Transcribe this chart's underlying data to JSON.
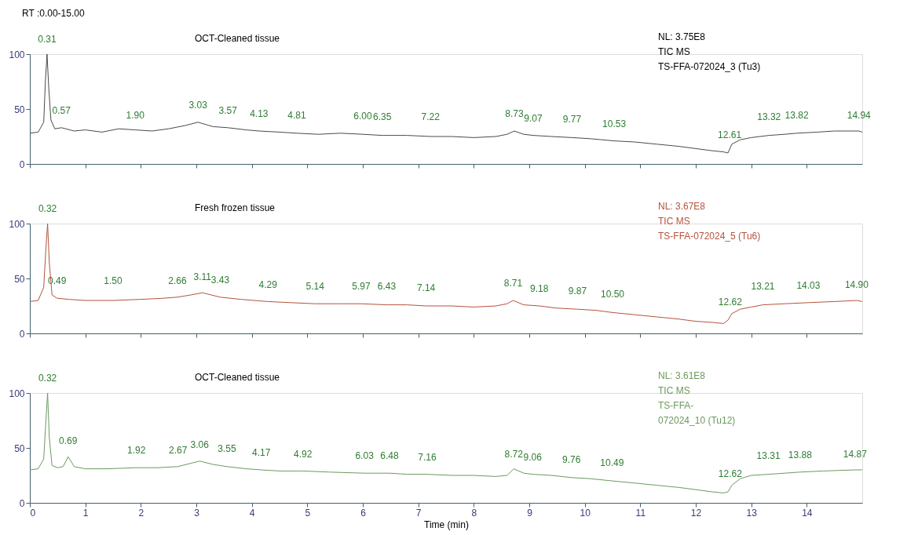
{
  "chart_data": [
    {
      "type": "line",
      "title": "OCT-Cleaned tissue",
      "xlim": [
        0,
        15
      ],
      "ylim": [
        0,
        100
      ],
      "xticks": [
        0,
        1,
        2,
        3,
        4,
        5,
        6,
        7,
        8,
        9,
        10,
        11,
        12,
        13,
        14
      ],
      "yticks": [
        0,
        50,
        100
      ],
      "tick_labels": "y",
      "grid": false,
      "x": [
        0,
        0.15,
        0.25,
        0.28,
        0.31,
        0.34,
        0.38,
        0.45,
        0.57,
        0.8,
        1.0,
        1.3,
        1.6,
        1.9,
        2.2,
        2.5,
        2.8,
        3.03,
        3.3,
        3.57,
        3.9,
        4.13,
        4.5,
        4.81,
        5.2,
        5.6,
        6.0,
        6.35,
        6.8,
        7.22,
        7.6,
        8.0,
        8.4,
        8.6,
        8.73,
        8.9,
        9.07,
        9.4,
        9.77,
        10.1,
        10.53,
        10.9,
        11.3,
        11.7,
        12.0,
        12.3,
        12.5,
        12.58,
        12.65,
        12.8,
        13.0,
        13.32,
        13.6,
        13.82,
        14.2,
        14.5,
        14.94,
        15.0
      ],
      "series": [
        {
          "color": "#4a4a4a",
          "values": [
            28,
            29,
            38,
            75,
            100,
            70,
            40,
            32,
            33,
            30,
            31,
            29,
            32,
            31,
            30,
            32,
            35,
            38,
            34,
            33,
            31,
            30,
            29,
            28,
            27,
            28,
            27,
            26,
            26,
            25,
            25,
            24,
            25,
            27,
            30,
            27,
            26,
            25,
            24,
            23,
            21,
            20,
            18,
            16,
            14,
            12,
            11,
            10,
            18,
            22,
            24,
            26,
            27,
            28,
            29,
            30,
            30,
            29
          ]
        }
      ],
      "annotations": [
        "RT :0.00-15.00",
        "NL: 3.75E8",
        "TIC  MS",
        "TS-FFA-072024_3 (Tu3)",
        {
          "text": "0.31",
          "x": 0.31,
          "y": 100
        },
        {
          "text": "0.57",
          "x": 0.57,
          "y": 35
        },
        {
          "text": "1.90",
          "x": 1.9,
          "y": 31
        },
        {
          "text": "3.03",
          "x": 3.03,
          "y": 40
        },
        {
          "text": "3.57",
          "x": 3.57,
          "y": 35
        },
        {
          "text": "4.13",
          "x": 4.13,
          "y": 32
        },
        {
          "text": "4.81",
          "x": 4.81,
          "y": 31
        },
        {
          "text": "6.00",
          "x": 6.0,
          "y": 30
        },
        {
          "text": "6.35",
          "x": 6.35,
          "y": 29
        },
        {
          "text": "7.22",
          "x": 7.22,
          "y": 29
        },
        {
          "text": "8.73",
          "x": 8.73,
          "y": 32
        },
        {
          "text": "9.07",
          "x": 9.07,
          "y": 28
        },
        {
          "text": "9.77",
          "x": 9.77,
          "y": 27
        },
        {
          "text": "10.53",
          "x": 10.53,
          "y": 23
        },
        {
          "text": "12.61",
          "x": 12.61,
          "y": 13
        },
        {
          "text": "13.32",
          "x": 13.32,
          "y": 29
        },
        {
          "text": "13.82",
          "x": 13.82,
          "y": 31
        },
        {
          "text": "14.94",
          "x": 14.94,
          "y": 31
        }
      ]
    },
    {
      "type": "line",
      "title": "Fresh frozen tissue",
      "xlim": [
        0,
        15
      ],
      "ylim": [
        0,
        100
      ],
      "xticks": [
        0,
        1,
        2,
        3,
        4,
        5,
        6,
        7,
        8,
        9,
        10,
        11,
        12,
        13,
        14
      ],
      "yticks": [
        0,
        50,
        100
      ],
      "tick_labels": "y",
      "grid": false,
      "x": [
        0,
        0.15,
        0.25,
        0.29,
        0.32,
        0.35,
        0.4,
        0.49,
        0.7,
        1.0,
        1.5,
        2.0,
        2.4,
        2.66,
        2.9,
        3.11,
        3.43,
        3.8,
        4.29,
        4.7,
        5.14,
        5.6,
        5.97,
        6.43,
        6.8,
        7.14,
        7.6,
        8.0,
        8.4,
        8.6,
        8.71,
        8.9,
        9.18,
        9.5,
        9.87,
        10.2,
        10.5,
        10.9,
        11.3,
        11.7,
        12.0,
        12.3,
        12.5,
        12.58,
        12.65,
        12.8,
        13.0,
        13.21,
        13.6,
        14.03,
        14.5,
        14.9,
        15.0
      ],
      "series": [
        {
          "color": "#b5533c",
          "values": [
            29,
            30,
            42,
            78,
            100,
            65,
            35,
            32,
            31,
            30,
            30,
            31,
            32,
            33,
            35,
            37,
            33,
            31,
            29,
            28,
            27,
            27,
            27,
            26,
            26,
            25,
            25,
            24,
            25,
            27,
            30,
            26,
            25,
            23,
            22,
            21,
            19,
            17,
            15,
            13,
            11,
            10,
            9,
            12,
            18,
            22,
            24,
            26,
            27,
            28,
            29,
            30,
            29
          ]
        }
      ],
      "annotations": [
        "NL: 3.67E8",
        "TIC  MS",
        "TS-FFA-072024_5  (Tu6)",
        {
          "text": "0.32",
          "x": 0.32,
          "y": 100
        },
        {
          "text": "0.49",
          "x": 0.49,
          "y": 34
        },
        {
          "text": "1.50",
          "x": 1.5,
          "y": 34
        },
        {
          "text": "2.66",
          "x": 2.66,
          "y": 34
        },
        {
          "text": "3.11",
          "x": 3.11,
          "y": 38
        },
        {
          "text": "3.43",
          "x": 3.43,
          "y": 35
        },
        {
          "text": "4.29",
          "x": 4.29,
          "y": 31
        },
        {
          "text": "5.14",
          "x": 5.14,
          "y": 29
        },
        {
          "text": "5.97",
          "x": 5.97,
          "y": 29
        },
        {
          "text": "6.43",
          "x": 6.43,
          "y": 29
        },
        {
          "text": "7.14",
          "x": 7.14,
          "y": 28
        },
        {
          "text": "8.71",
          "x": 8.71,
          "y": 32
        },
        {
          "text": "9.18",
          "x": 9.18,
          "y": 27
        },
        {
          "text": "9.87",
          "x": 9.87,
          "y": 25
        },
        {
          "text": "10.50",
          "x": 10.5,
          "y": 22
        },
        {
          "text": "12.62",
          "x": 12.62,
          "y": 15
        },
        {
          "text": "13.21",
          "x": 13.21,
          "y": 29
        },
        {
          "text": "14.03",
          "x": 14.03,
          "y": 30
        },
        {
          "text": "14.90",
          "x": 14.9,
          "y": 31
        }
      ]
    },
    {
      "type": "line",
      "title": "OCT-Cleaned tissue",
      "xlabel": "Time (min)",
      "xlim": [
        0,
        15
      ],
      "ylim": [
        0,
        100
      ],
      "xticks": [
        0,
        1,
        2,
        3,
        4,
        5,
        6,
        7,
        8,
        9,
        10,
        11,
        12,
        13,
        14
      ],
      "yticks": [
        0,
        50,
        100
      ],
      "grid": false,
      "x": [
        0,
        0.15,
        0.25,
        0.29,
        0.32,
        0.35,
        0.4,
        0.5,
        0.6,
        0.69,
        0.8,
        1.0,
        1.4,
        1.92,
        2.3,
        2.67,
        2.9,
        3.06,
        3.3,
        3.55,
        3.9,
        4.17,
        4.5,
        4.92,
        5.4,
        6.03,
        6.48,
        6.8,
        7.16,
        7.6,
        8.0,
        8.4,
        8.6,
        8.72,
        8.9,
        9.06,
        9.4,
        9.76,
        10.1,
        10.49,
        10.9,
        11.3,
        11.7,
        12.0,
        12.3,
        12.5,
        12.58,
        12.65,
        12.8,
        13.0,
        13.31,
        13.6,
        13.88,
        14.3,
        14.87,
        15.0
      ],
      "series": [
        {
          "color": "#6b9a5e",
          "values": [
            30,
            31,
            40,
            75,
            100,
            60,
            34,
            32,
            33,
            42,
            33,
            31,
            31,
            32,
            32,
            33,
            36,
            38,
            35,
            33,
            31,
            30,
            29,
            29,
            28,
            27,
            27,
            26,
            26,
            25,
            25,
            24,
            25,
            31,
            27,
            26,
            25,
            23,
            22,
            20,
            18,
            16,
            14,
            12,
            10,
            9,
            10,
            16,
            22,
            25,
            26,
            27,
            28,
            29,
            30,
            30
          ]
        }
      ],
      "annotations": [
        "NL: 3.61E8",
        "TIC  MS",
        "TS-FFA-",
        "072024_10 (Tu12)",
        {
          "text": "0.32",
          "x": 0.32,
          "y": 100
        },
        {
          "text": "0.69",
          "x": 0.69,
          "y": 43
        },
        {
          "text": "1.92",
          "x": 1.92,
          "y": 34
        },
        {
          "text": "2.67",
          "x": 2.67,
          "y": 34
        },
        {
          "text": "3.06",
          "x": 3.06,
          "y": 39
        },
        {
          "text": "3.55",
          "x": 3.55,
          "y": 36
        },
        {
          "text": "4.17",
          "x": 4.17,
          "y": 32
        },
        {
          "text": "4.92",
          "x": 4.92,
          "y": 31
        },
        {
          "text": "6.03",
          "x": 6.03,
          "y": 29
        },
        {
          "text": "6.48",
          "x": 6.48,
          "y": 29
        },
        {
          "text": "7.16",
          "x": 7.16,
          "y": 28
        },
        {
          "text": "8.72",
          "x": 8.72,
          "y": 31
        },
        {
          "text": "9.06",
          "x": 9.06,
          "y": 28
        },
        {
          "text": "9.76",
          "x": 9.76,
          "y": 26
        },
        {
          "text": "10.49",
          "x": 10.49,
          "y": 23
        },
        {
          "text": "12.62",
          "x": 12.62,
          "y": 13
        },
        {
          "text": "13.31",
          "x": 13.31,
          "y": 29
        },
        {
          "text": "13.88",
          "x": 13.88,
          "y": 30
        },
        {
          "text": "14.87",
          "x": 14.87,
          "y": 31
        }
      ]
    }
  ]
}
